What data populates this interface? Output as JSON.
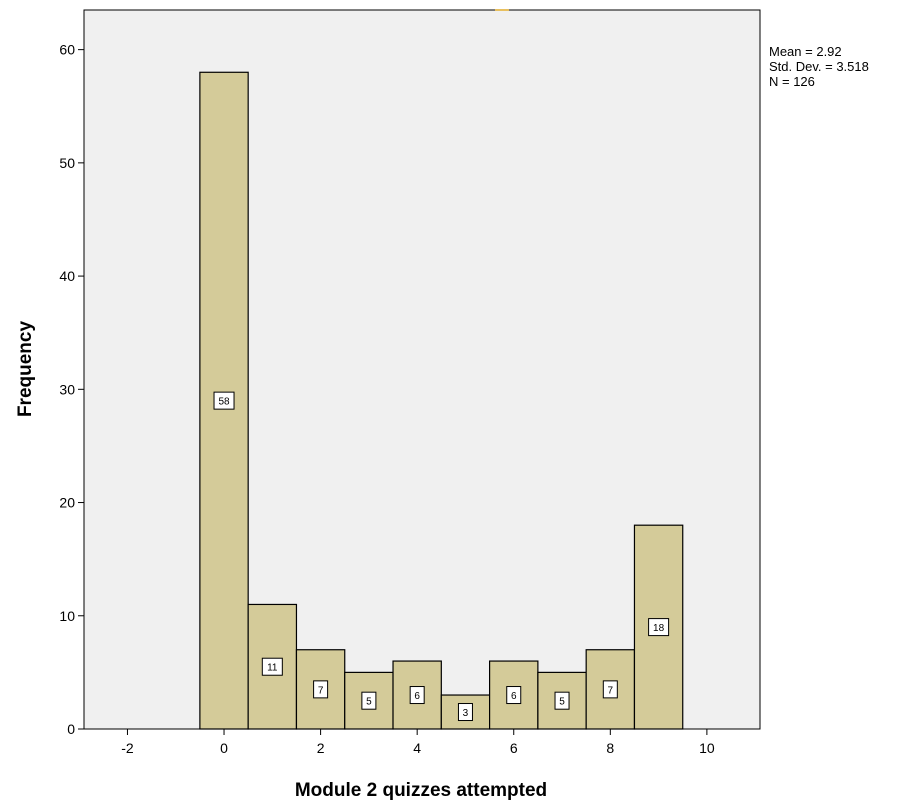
{
  "chart_data": {
    "type": "bar",
    "subtype": "histogram",
    "title": "",
    "xlabel": "Module 2 quizzes attempted",
    "ylabel": "Frequency",
    "bins": [
      {
        "x": 0,
        "value": 58,
        "label": "58"
      },
      {
        "x": 1,
        "value": 11,
        "label": "11"
      },
      {
        "x": 2,
        "value": 7,
        "label": "7"
      },
      {
        "x": 3,
        "value": 5,
        "label": "5"
      },
      {
        "x": 4,
        "value": 6,
        "label": "6"
      },
      {
        "x": 5,
        "value": 3,
        "label": "3"
      },
      {
        "x": 6,
        "value": 6,
        "label": "6"
      },
      {
        "x": 7,
        "value": 5,
        "label": "5"
      },
      {
        "x": 8,
        "value": 7,
        "label": "7"
      },
      {
        "x": 9,
        "value": 18,
        "label": "18"
      }
    ],
    "bin_width": 1,
    "xlim": [
      -2.9,
      11.1
    ],
    "ylim": [
      0,
      63.5
    ],
    "xticks": [
      -2,
      0,
      2,
      4,
      6,
      8,
      10
    ],
    "yticks": [
      0,
      10,
      20,
      30,
      40,
      50,
      60
    ],
    "grid": false,
    "colors": {
      "bar_fill": "#d4cb99",
      "bar_stroke": "#000000",
      "plot_background": "#f0f0f0",
      "label_box": "#ffffff",
      "top_marker": "#e8c060"
    }
  },
  "stats": {
    "mean": "Mean = 2.92",
    "std_dev": "Std. Dev. = 3.518",
    "n": "N = 126"
  }
}
